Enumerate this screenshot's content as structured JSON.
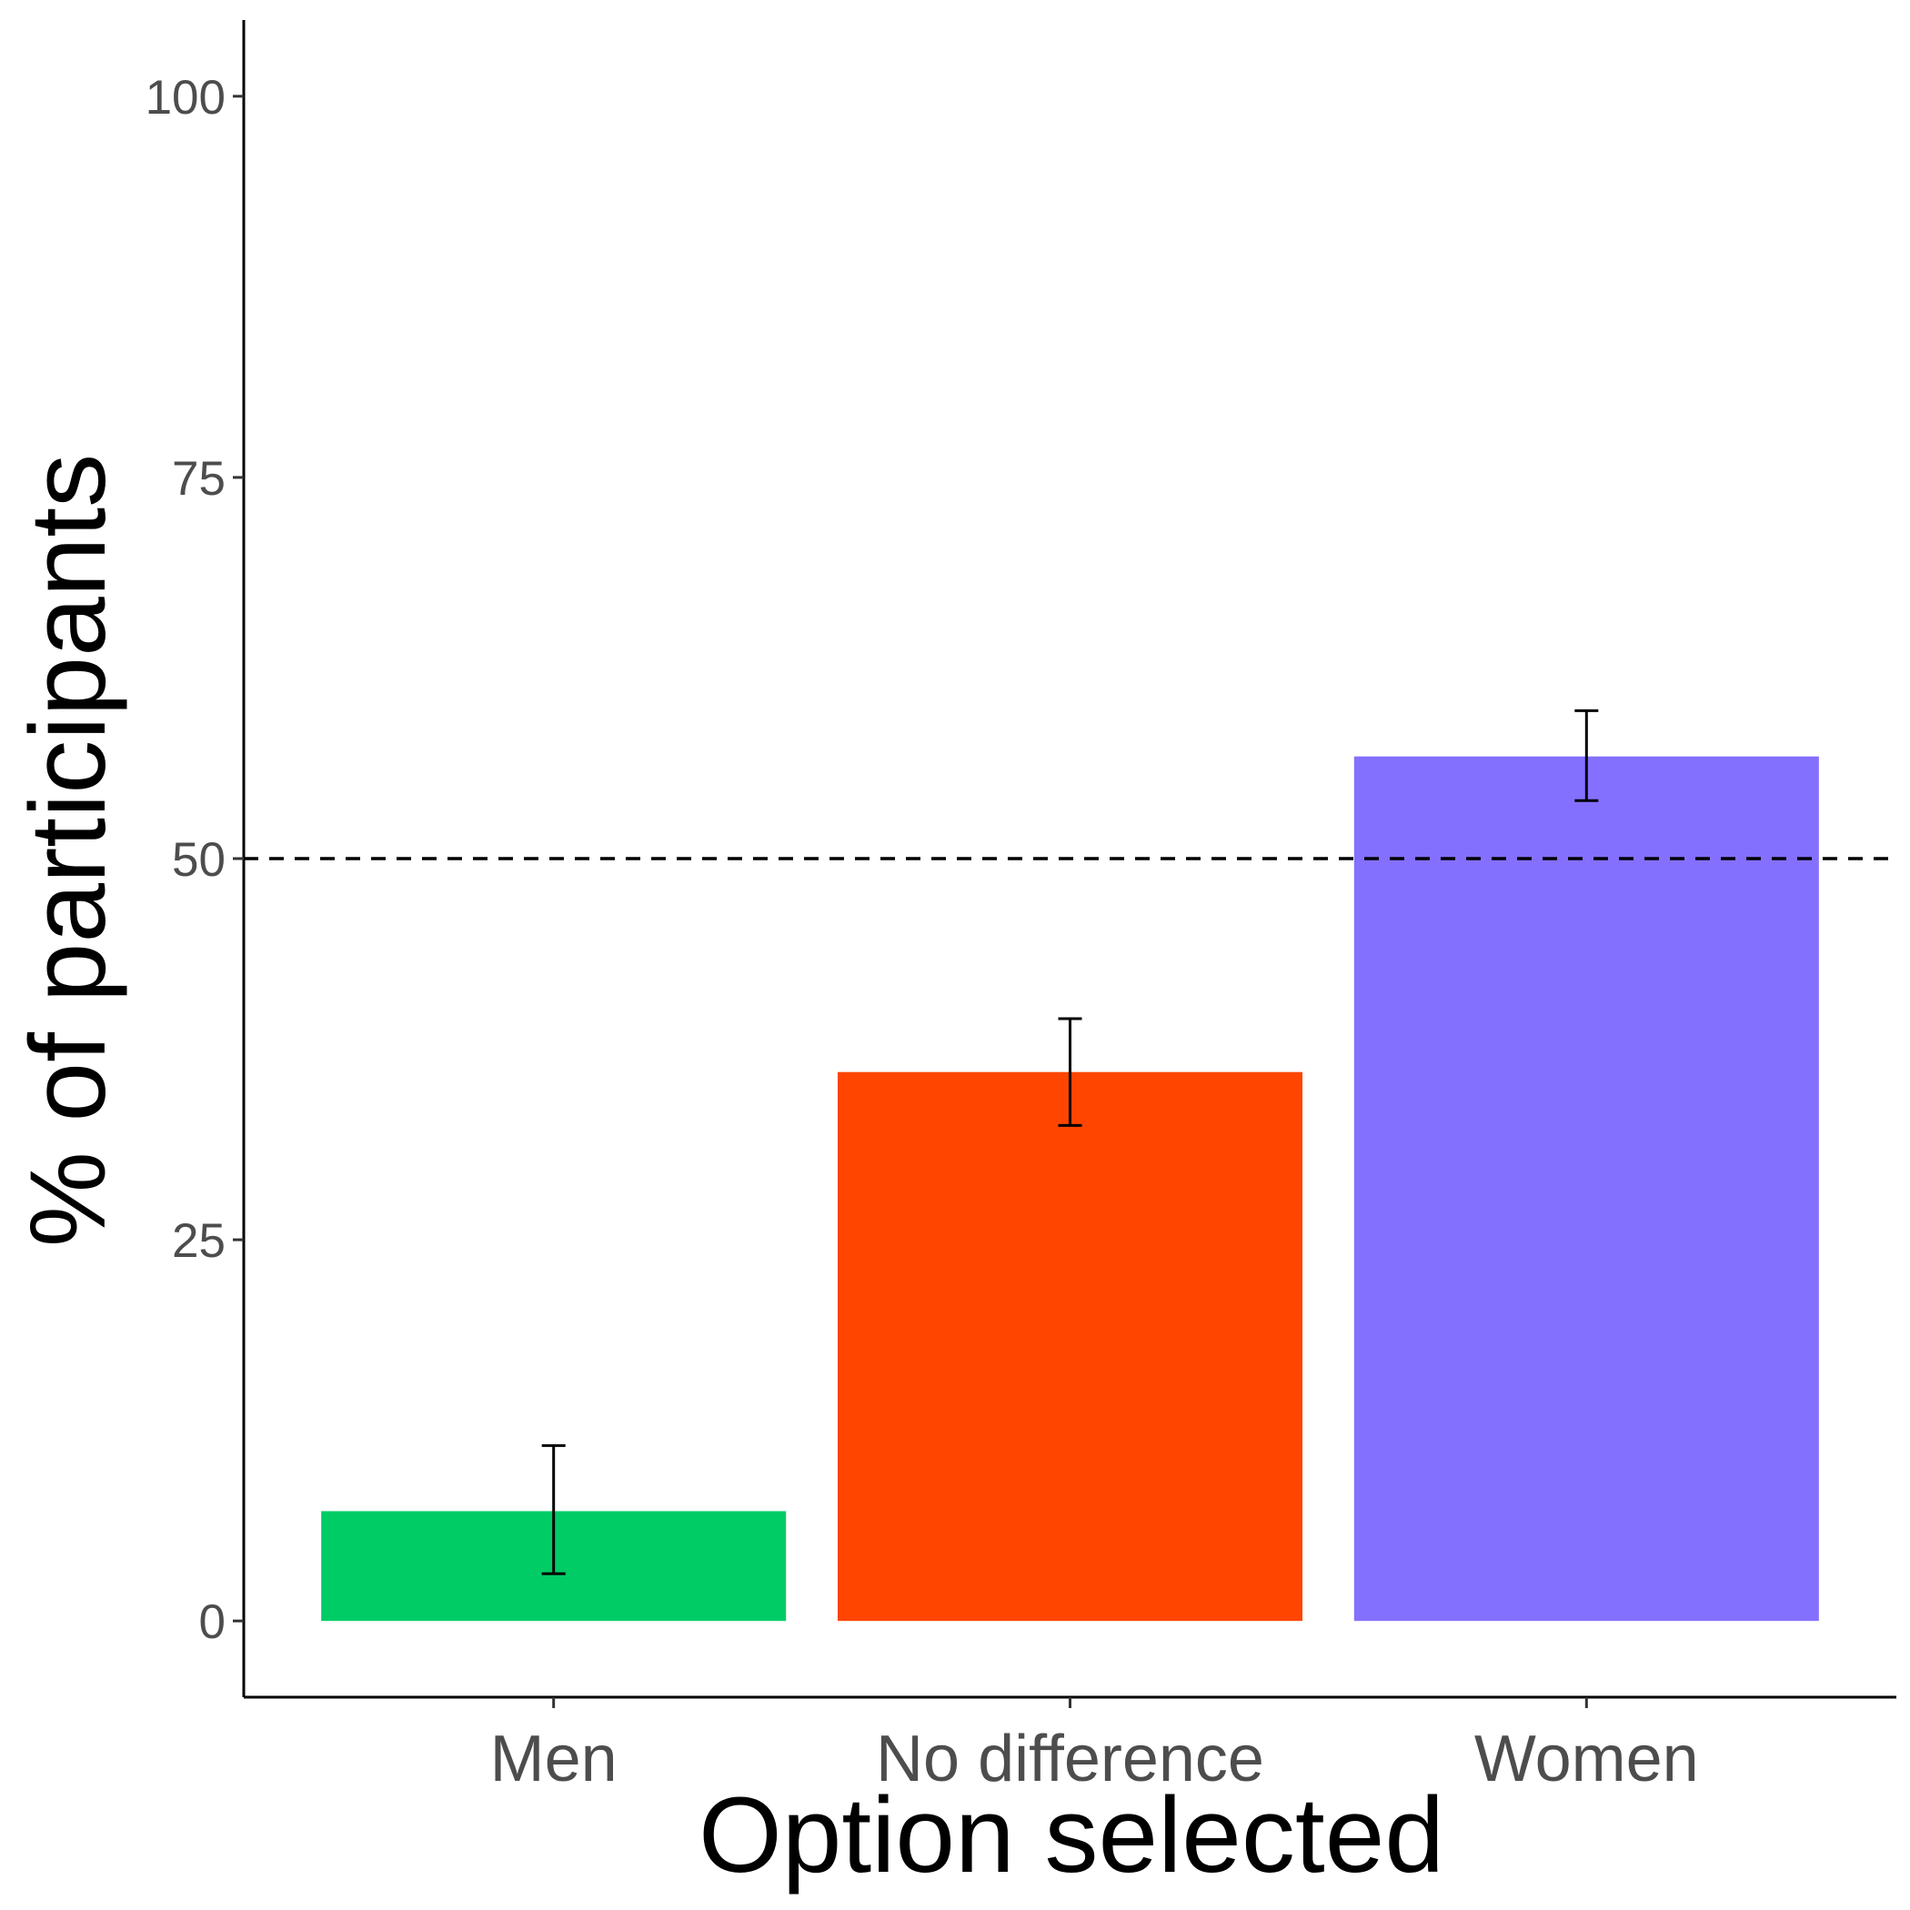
{
  "chart_data": {
    "type": "bar",
    "title": "",
    "xlabel": "Option selected",
    "ylabel": "% of participants",
    "categories": [
      "Men",
      "No difference",
      "Women"
    ],
    "values": [
      7.2,
      36.0,
      56.7
    ],
    "error_low": [
      3.1,
      32.5,
      53.8
    ],
    "error_high": [
      11.5,
      39.5,
      59.7
    ],
    "colors": [
      "#00CC66",
      "#FF4500",
      "#8470FF"
    ],
    "ylim": [
      -5,
      105
    ],
    "yticks": [
      0,
      25,
      50,
      75,
      100
    ],
    "reference_line": {
      "y": 50,
      "style": "dashed",
      "color": "#000000"
    },
    "grid": false,
    "legend": "none"
  }
}
